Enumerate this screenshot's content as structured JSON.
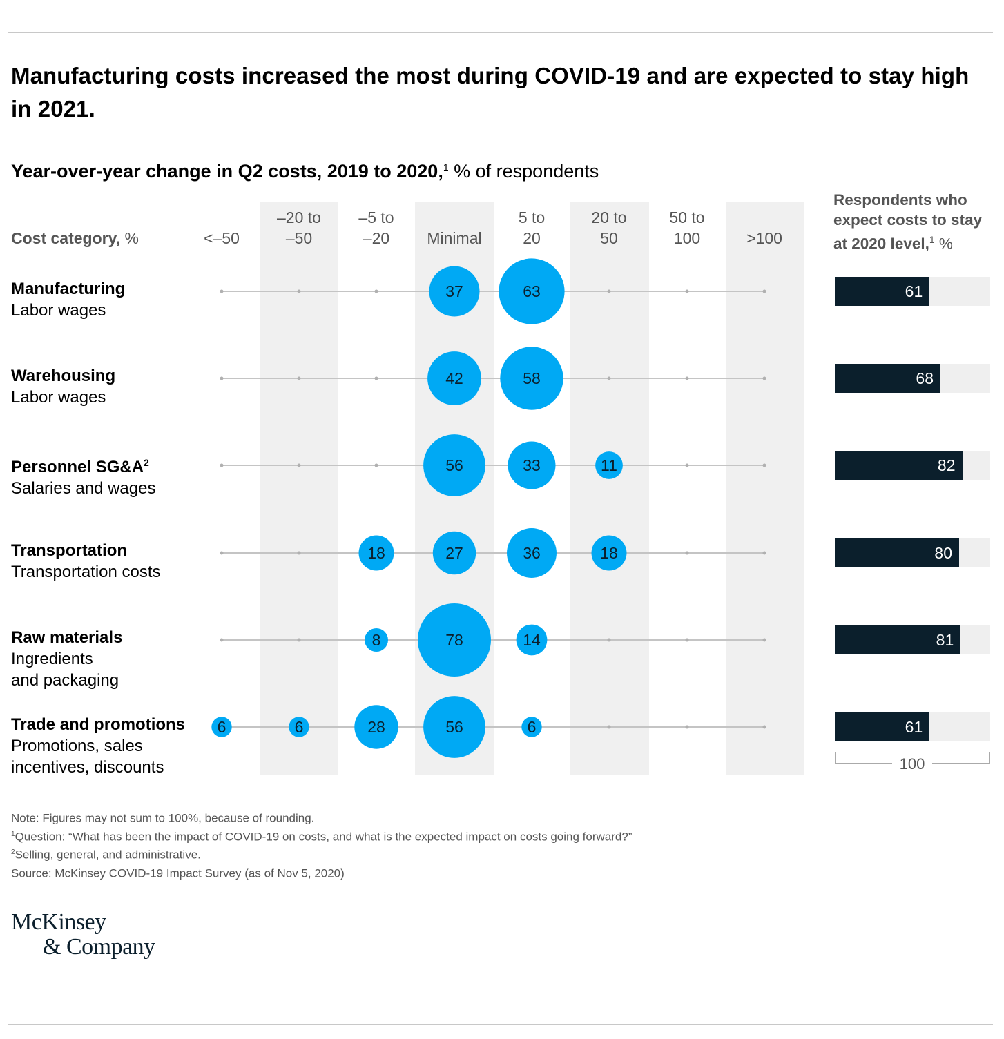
{
  "title": "Manufacturing costs increased the most during COVID-19 and are expected to stay high in 2021.",
  "subtitle": {
    "bold": "Year-over-year change in Q2 costs, 2019 to 2020,",
    "sup": "1",
    "normal": " % of respondents"
  },
  "category_header": {
    "bold": "Cost category,",
    "normal": " %"
  },
  "right_header": {
    "text": "Respondents who expect costs to stay at 2020 level,",
    "sup": "1",
    "suffix": " %"
  },
  "scale_label": "100",
  "colors": {
    "bubble": "#00a9f4",
    "bar": "#0b1f2c",
    "bar_track": "#efefef",
    "band": "#f0f0f0",
    "line": "#c4c4c4"
  },
  "chart_data": [
    {
      "type": "bubble-matrix",
      "title": "Year-over-year change in Q2 costs, 2019 to 2020, % of respondents",
      "x_categories": [
        "<–50",
        "–20 to –50",
        "–5 to –20",
        "Minimal",
        "5 to 20",
        "20 to 50",
        "50 to 100",
        ">100"
      ],
      "rows": [
        {
          "category": "Manufacturing",
          "sub": "Labor wages",
          "sup": "",
          "values": [
            null,
            null,
            null,
            37,
            63,
            null,
            null,
            null
          ]
        },
        {
          "category": "Warehousing",
          "sub": "Labor wages",
          "sup": "",
          "values": [
            null,
            null,
            null,
            42,
            58,
            null,
            null,
            null
          ]
        },
        {
          "category": "Personnel SG&A",
          "sub": "Salaries and wages",
          "sup": "2",
          "values": [
            null,
            null,
            null,
            56,
            33,
            11,
            null,
            null
          ]
        },
        {
          "category": "Transportation",
          "sub": "Transportation costs",
          "sup": "",
          "values": [
            null,
            null,
            18,
            27,
            36,
            18,
            null,
            null
          ]
        },
        {
          "category": "Raw materials",
          "sub": "Ingredients\nand packaging",
          "sup": "",
          "values": [
            null,
            null,
            8,
            78,
            14,
            null,
            null,
            null
          ]
        },
        {
          "category": "Trade and promotions",
          "sub": "Promotions, sales\nincentives, discounts",
          "sup": "",
          "values": [
            6,
            6,
            28,
            56,
            6,
            null,
            null,
            null
          ]
        }
      ]
    },
    {
      "type": "bar",
      "title": "Respondents who expect costs to stay at 2020 level, %",
      "categories": [
        "Manufacturing",
        "Warehousing",
        "Personnel SG&A",
        "Transportation",
        "Raw materials",
        "Trade and promotions"
      ],
      "values": [
        61,
        68,
        82,
        80,
        81,
        61
      ],
      "xlim": [
        0,
        100
      ]
    }
  ],
  "notes": [
    {
      "sup": "",
      "text": " Note: Figures may not sum to 100%, because of rounding."
    },
    {
      "sup": "1",
      "text": "Question: “What has been the impact of COVID-19 on costs, and what is the expected impact on costs going forward?”"
    },
    {
      "sup": "2",
      "text": "Selling, general, and administrative."
    },
    {
      "sup": "",
      "text": " Source: McKinsey COVID-19 Impact Survey (as of Nov 5, 2020)"
    }
  ],
  "logo": [
    "McKinsey",
    "& Company"
  ]
}
